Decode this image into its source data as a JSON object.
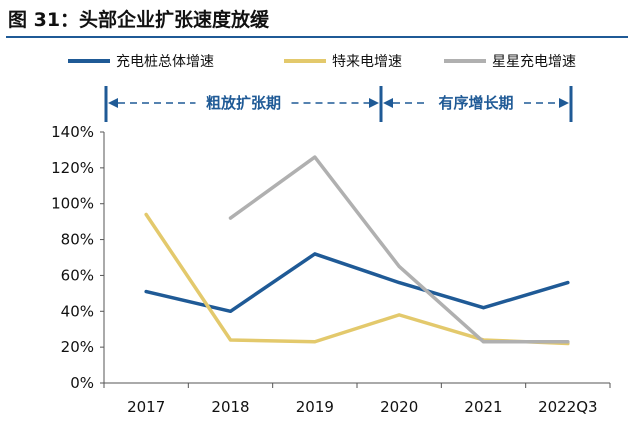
{
  "title": "图 31：头部企业扩张速度放缓",
  "chart_data": {
    "type": "line",
    "title": "图 31：头部企业扩张速度放缓",
    "categories": [
      "2017",
      "2018",
      "2019",
      "2020",
      "2021",
      "2022Q3"
    ],
    "y_ticks": [
      "0%",
      "20%",
      "40%",
      "60%",
      "80%",
      "100%",
      "120%",
      "140%"
    ],
    "ylim": [
      0,
      140
    ],
    "y_unit": "%",
    "grid": false,
    "legend_position": "top",
    "series": [
      {
        "name": "充电桩总体增速",
        "color": "#1f5a96",
        "values": [
          51,
          40,
          72,
          56,
          42,
          56
        ]
      },
      {
        "name": "特来电增速",
        "color": "#e3c96c",
        "values": [
          94,
          24,
          23,
          38,
          24,
          22
        ]
      },
      {
        "name": "星星充电增速",
        "color": "#b0b0b0",
        "values": [
          null,
          92,
          126,
          65,
          23,
          23
        ]
      }
    ],
    "phases": [
      {
        "label": "粗放扩张期",
        "from": "2017",
        "to": "2019"
      },
      {
        "label": "有序增长期",
        "from": "2019",
        "to": "2022Q3"
      }
    ],
    "phase_color": "#1f5a96"
  }
}
